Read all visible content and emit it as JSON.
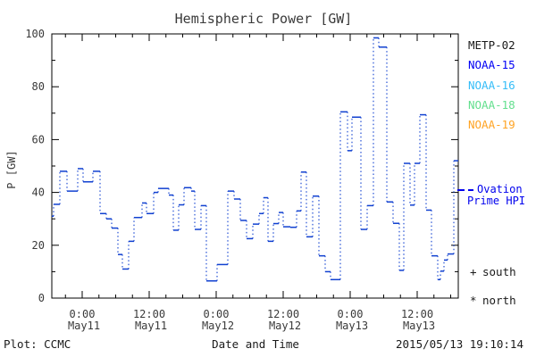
{
  "title": "Hemispheric Power [GW]",
  "chart_data": {
    "type": "step-line",
    "title": "Hemispheric Power [GW]",
    "xlabel": "Date and Time",
    "ylabel": "P [GW]",
    "series_name": "Ovation Prime HPI",
    "units": "GW",
    "ylim": [
      0,
      100
    ],
    "y_major_step": 20,
    "y_minor_step": 10,
    "x_range": [
      -5.44,
      67.36
    ],
    "x_reference": "hours from May11 0:00",
    "x_minor_step_hours": 3,
    "x_major_ticks": [
      {
        "t": 0,
        "time": "0:00",
        "date": "May11"
      },
      {
        "t": 12,
        "time": "12:00",
        "date": "May11"
      },
      {
        "t": 24,
        "time": "0:00",
        "date": "May12"
      },
      {
        "t": 36,
        "time": "12:00",
        "date": "May12"
      },
      {
        "t": 48,
        "time": "0:00",
        "date": "May13"
      },
      {
        "t": 60,
        "time": "12:00",
        "date": "May13"
      }
    ],
    "axis_color": "#000000",
    "line_color": "#1040D0",
    "steps": [
      [
        -5.44,
        -5.12,
        31
      ],
      [
        -5.12,
        -4.0,
        35.5
      ],
      [
        -4.0,
        -2.72,
        48
      ],
      [
        -2.72,
        -0.8,
        40.5
      ],
      [
        -0.8,
        0.16,
        49
      ],
      [
        0.16,
        1.92,
        44
      ],
      [
        1.92,
        3.2,
        48
      ],
      [
        3.2,
        4.32,
        32
      ],
      [
        4.32,
        5.28,
        30
      ],
      [
        5.28,
        6.4,
        26.5
      ],
      [
        6.4,
        7.2,
        16.5
      ],
      [
        7.2,
        8.32,
        11
      ],
      [
        8.32,
        9.28,
        21.5
      ],
      [
        9.28,
        10.72,
        30.5
      ],
      [
        10.72,
        11.52,
        36
      ],
      [
        11.52,
        12.8,
        32
      ],
      [
        12.8,
        13.6,
        40
      ],
      [
        13.6,
        15.52,
        41.5
      ],
      [
        15.52,
        16.32,
        39
      ],
      [
        16.32,
        17.28,
        25.7
      ],
      [
        17.28,
        18.24,
        35.3
      ],
      [
        18.24,
        19.52,
        41.8
      ],
      [
        19.52,
        20.16,
        40.5
      ],
      [
        20.16,
        21.28,
        26
      ],
      [
        21.28,
        22.24,
        35
      ],
      [
        22.24,
        24.16,
        6.5
      ],
      [
        24.16,
        26.08,
        12.7
      ],
      [
        26.08,
        27.2,
        40.5
      ],
      [
        27.2,
        28.32,
        37.5
      ],
      [
        28.32,
        29.44,
        29.4
      ],
      [
        29.44,
        30.56,
        22.5
      ],
      [
        30.56,
        31.68,
        28
      ],
      [
        31.68,
        32.48,
        32
      ],
      [
        32.48,
        33.28,
        38
      ],
      [
        33.28,
        34.24,
        21.5
      ],
      [
        34.24,
        35.2,
        28.2
      ],
      [
        35.2,
        36.0,
        32.4
      ],
      [
        36.0,
        37.28,
        27
      ],
      [
        37.28,
        38.4,
        26.8
      ],
      [
        38.4,
        39.2,
        33
      ],
      [
        39.2,
        40.16,
        47.7
      ],
      [
        40.16,
        41.28,
        23.2
      ],
      [
        41.28,
        42.4,
        38.6
      ],
      [
        42.4,
        43.52,
        16
      ],
      [
        43.52,
        44.48,
        10
      ],
      [
        44.48,
        46.24,
        7
      ],
      [
        46.24,
        47.52,
        70.5
      ],
      [
        47.52,
        48.32,
        55.8
      ],
      [
        48.32,
        49.92,
        68.5
      ],
      [
        49.92,
        51.04,
        26
      ],
      [
        51.04,
        52.16,
        35
      ],
      [
        52.16,
        53.12,
        98.5
      ],
      [
        53.12,
        54.56,
        95
      ],
      [
        54.56,
        55.68,
        36.4
      ],
      [
        55.68,
        56.8,
        28.3
      ],
      [
        56.8,
        57.6,
        10.5
      ],
      [
        57.6,
        58.72,
        51
      ],
      [
        58.72,
        59.52,
        35.2
      ],
      [
        59.52,
        60.48,
        51
      ],
      [
        60.48,
        61.6,
        69.4
      ],
      [
        61.6,
        62.56,
        33.3
      ],
      [
        62.56,
        63.68,
        16
      ],
      [
        63.68,
        64.16,
        7
      ],
      [
        64.16,
        64.8,
        10.2
      ],
      [
        64.8,
        65.44,
        14.4
      ],
      [
        65.44,
        66.56,
        16.7
      ],
      [
        66.56,
        67.36,
        52
      ]
    ]
  },
  "legend": {
    "items": [
      {
        "label": "METP-02",
        "color": "#1a1a1a"
      },
      {
        "label": "NOAA-15",
        "color": "#0000F5"
      },
      {
        "label": "NOAA-16",
        "color": "#35BDF8"
      },
      {
        "label": "NOAA-18",
        "color": "#63DF8E"
      },
      {
        "label": "NOAA-19",
        "color": "#FFA424"
      }
    ],
    "markers": [
      {
        "symbol": "+",
        "label": "south"
      },
      {
        "symbol": "*",
        "label": "north"
      }
    ]
  },
  "annotations": {
    "ovation": {
      "line1": "Ovation",
      "line2": "Prime HPI",
      "color": "#0000EE"
    }
  },
  "footer": {
    "left": "Plot: CCMC",
    "xlabel": "Date and Time",
    "timestamp": "2015/05/13 19:10:14"
  }
}
